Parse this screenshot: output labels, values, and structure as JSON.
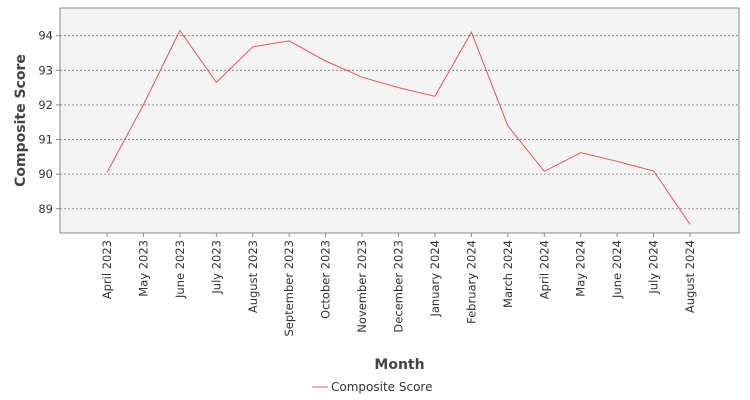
{
  "chart_data": {
    "type": "line",
    "title": "",
    "xlabel": "Month",
    "ylabel": "Composite Score",
    "categories": [
      "April 2023",
      "May 2023",
      "June 2023",
      "July 2023",
      "August 2023",
      "September 2023",
      "October 2023",
      "November 2023",
      "December 2023",
      "January 2024",
      "February 2024",
      "March 2024",
      "April 2024",
      "May 2024",
      "June 2024",
      "July 2024",
      "August 2024"
    ],
    "series": [
      {
        "name": "Composite Score",
        "color": "#f05050",
        "values": [
          90.05,
          92.0,
          94.15,
          92.65,
          93.68,
          93.85,
          93.27,
          92.8,
          92.5,
          92.25,
          94.1,
          91.4,
          90.08,
          90.62,
          90.37,
          90.09,
          88.55
        ]
      }
    ],
    "ylim": [
      88.3,
      94.8
    ],
    "yticks": [
      89,
      90,
      91,
      92,
      93,
      94
    ],
    "grid": true,
    "legend": "bottom-center"
  }
}
